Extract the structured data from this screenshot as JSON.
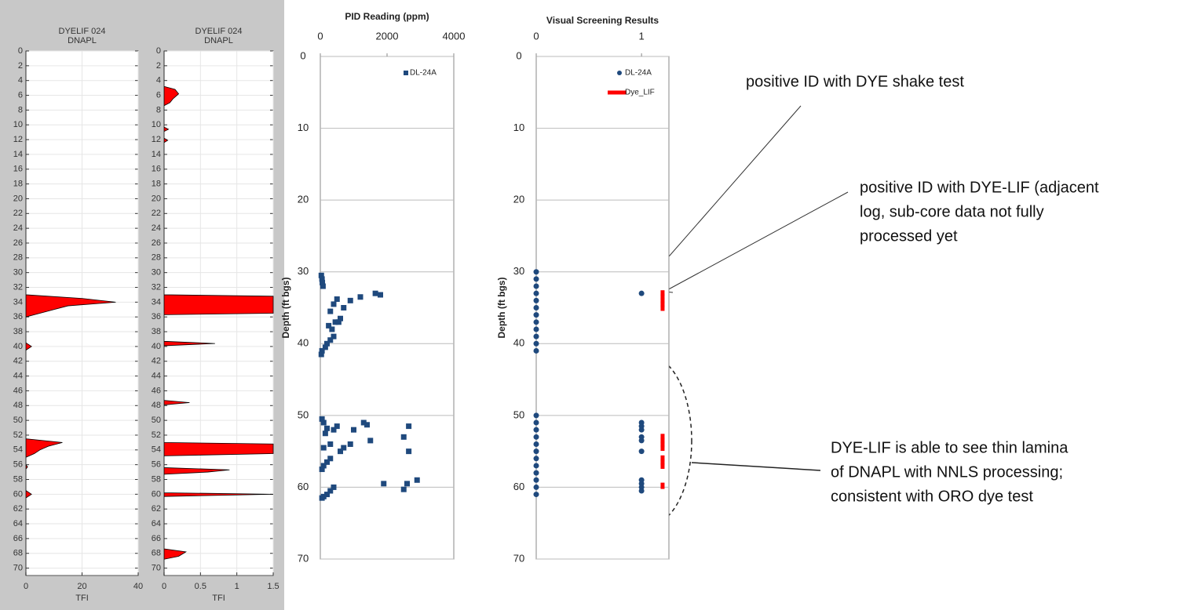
{
  "chart_data": [
    {
      "type": "area",
      "title": "DYELIF 024",
      "subtitle": "DNAPL",
      "xlabel": "TFI",
      "color": "#ff0000",
      "xlim": [
        0,
        40
      ],
      "xticks": [
        0,
        20,
        40
      ],
      "ylim": [
        0,
        71
      ],
      "yticks": [
        0,
        2,
        4,
        6,
        8,
        10,
        12,
        14,
        16,
        18,
        20,
        22,
        24,
        26,
        28,
        30,
        32,
        34,
        36,
        38,
        40,
        42,
        44,
        46,
        48,
        50,
        52,
        54,
        56,
        58,
        60,
        62,
        64,
        66,
        68,
        70
      ],
      "grid": true,
      "y": [
        0,
        33,
        33.5,
        34,
        34.5,
        35,
        35.5,
        36,
        39.5,
        40,
        40.5,
        52.5,
        53,
        53.5,
        54,
        54.5,
        55,
        56,
        56.3,
        56.6,
        59.5,
        60,
        60.5,
        71
      ],
      "values": [
        0,
        0,
        20,
        32,
        15,
        10,
        5,
        0,
        0,
        2,
        0,
        0,
        13,
        8,
        5,
        3,
        0,
        0,
        0.6,
        0,
        0,
        2,
        0,
        0
      ]
    },
    {
      "type": "area",
      "title": "DYELIF 024",
      "subtitle": "DNAPL",
      "xlabel": "TFI",
      "color": "#ff0000",
      "xlim": [
        0,
        1.5
      ],
      "xticks": [
        0,
        0.5,
        1,
        1.5
      ],
      "ylim": [
        0,
        71
      ],
      "yticks": [
        0,
        2,
        4,
        6,
        8,
        10,
        12,
        14,
        16,
        18,
        20,
        22,
        24,
        26,
        28,
        30,
        32,
        34,
        36,
        38,
        40,
        42,
        44,
        46,
        48,
        50,
        52,
        54,
        56,
        58,
        60,
        62,
        64,
        66,
        68,
        70
      ],
      "grid": true,
      "y": [
        0,
        4.8,
        5.2,
        5.8,
        6.5,
        7,
        7.4,
        10.3,
        10.6,
        10.9,
        11.8,
        12.1,
        12.4,
        33,
        33.2,
        34,
        35,
        35.5,
        35.7,
        39.3,
        39.6,
        39.9,
        47.3,
        47.6,
        47.9,
        53,
        53.2,
        54,
        54.5,
        54.8,
        56.4,
        56.7,
        57,
        57.3,
        59.8,
        60,
        60.3,
        67.4,
        67.8,
        68.4,
        68.8,
        71
      ],
      "values": [
        0,
        0,
        0.15,
        0.2,
        0.12,
        0.08,
        0,
        0,
        0.06,
        0,
        0,
        0.05,
        0,
        0,
        1.5,
        1.5,
        1.5,
        1.5,
        0,
        0,
        0.7,
        0,
        0,
        0.35,
        0,
        0,
        1.5,
        1.5,
        1.5,
        0,
        0,
        0.9,
        0.6,
        0,
        0,
        1.5,
        0,
        0,
        0.3,
        0.2,
        0,
        0
      ]
    },
    {
      "type": "scatter",
      "title": "PID Reading (ppm)",
      "ylabel": "Depth (ft bgs)",
      "xlim": [
        0,
        4000
      ],
      "xticks": [
        0,
        2000,
        4000
      ],
      "ylim": [
        0,
        70
      ],
      "yticks": [
        0,
        10,
        20,
        30,
        40,
        50,
        60,
        70
      ],
      "grid": true,
      "legend": "upper right",
      "series": [
        {
          "name": "DL-24A",
          "color": "#1f497d",
          "marker": "square",
          "x": [
            30,
            50,
            60,
            80,
            1650,
            1800,
            1200,
            900,
            500,
            400,
            700,
            300,
            600,
            450,
            550,
            250,
            350,
            400,
            300,
            200,
            150,
            50,
            30,
            50,
            100,
            1300,
            1400,
            500,
            200,
            2650,
            400,
            150,
            1000,
            2500,
            1500,
            300,
            700,
            900,
            100,
            2650,
            600,
            300,
            200,
            100,
            50,
            1900,
            2900,
            2600,
            2500,
            400,
            300,
            200,
            100,
            50
          ],
          "values": [
            30.5,
            31,
            31.5,
            32,
            33,
            33.2,
            33.5,
            34,
            33.8,
            34.5,
            35,
            35.5,
            36.5,
            37,
            37,
            37.5,
            38,
            39,
            39.5,
            40,
            40.5,
            41,
            41.5,
            50.5,
            51,
            51,
            51.3,
            51.5,
            51.8,
            51.5,
            52,
            52.5,
            52,
            53,
            53.5,
            54,
            54.5,
            54,
            54.5,
            55,
            55,
            56,
            56.5,
            57,
            57.5,
            59.5,
            59,
            59.5,
            60.3,
            60,
            60.5,
            61,
            61.3,
            61.5
          ]
        }
      ]
    },
    {
      "type": "scatter",
      "title": "Visual Screening Results",
      "ylabel": "Depth (ft bgs)",
      "xlim": [
        0,
        1.26
      ],
      "xticks": [
        0,
        1
      ],
      "ylim": [
        0,
        70
      ],
      "yticks": [
        0,
        10,
        20,
        30,
        40,
        50,
        60,
        70
      ],
      "grid": true,
      "legend": "upper right",
      "series": [
        {
          "name": "DL-24A",
          "color": "#1f497d",
          "marker": "circle",
          "x": [
            0,
            0,
            0,
            0,
            0,
            0,
            0,
            0,
            0,
            0,
            0,
            0,
            0,
            0,
            0,
            0,
            0,
            0,
            0,
            0,
            0,
            0,
            0,
            0,
            1,
            1,
            1,
            1,
            1,
            1,
            1,
            1,
            1,
            1,
            1
          ],
          "values": [
            30,
            31,
            32,
            33,
            34,
            35,
            36,
            37,
            38,
            39,
            40,
            41,
            50,
            51,
            52,
            53,
            54,
            55,
            56,
            57,
            58,
            59,
            60,
            61,
            33,
            51,
            51.5,
            52,
            53,
            53.5,
            55,
            59,
            59.5,
            60,
            60.5
          ]
        },
        {
          "name": "Dye_LIF",
          "color": "#ff0000",
          "marker": "dash",
          "x": [
            1.2,
            1.2,
            1.2,
            1.2,
            1.2,
            1.2,
            1.2,
            1.2,
            1.2,
            1.2,
            1.2,
            1.2,
            1.2
          ],
          "values": [
            33,
            33.5,
            34,
            34.5,
            35,
            53,
            53.5,
            54,
            54.5,
            56,
            56.5,
            57,
            59.8
          ]
        }
      ]
    }
  ],
  "annotations": [
    {
      "lines": [
        "positive ID with DYE shake test"
      ]
    },
    {
      "lines": [
        "positive ID with DYE-LIF (adjacent",
        "log, sub-core data not fully",
        "processed yet"
      ]
    },
    {
      "lines": [
        "DYE-LIF is able to see thin lamina",
        "of DNAPL with NNLS processing;",
        "consistent with ORO dye test"
      ]
    }
  ]
}
